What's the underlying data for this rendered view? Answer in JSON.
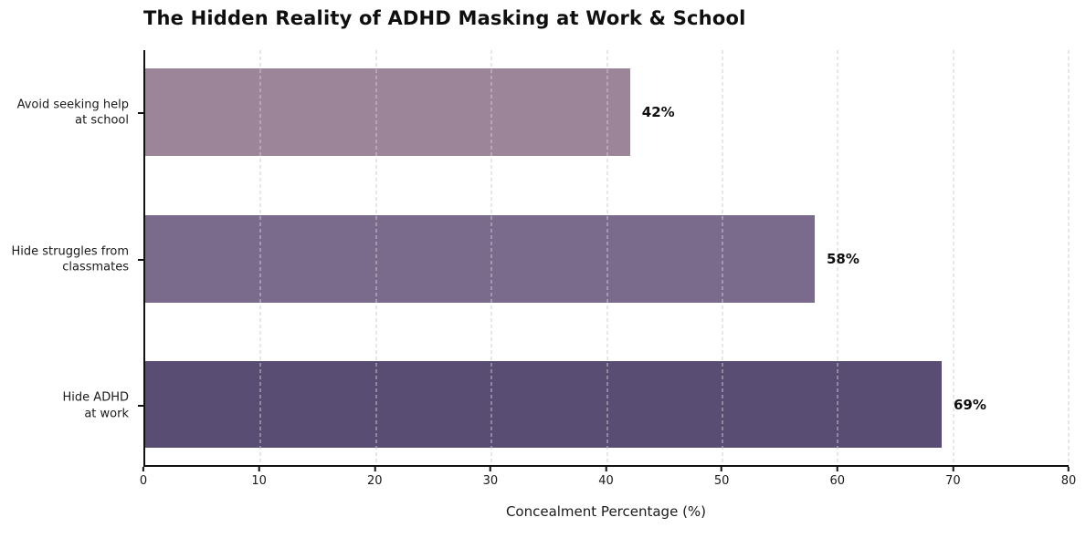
{
  "chart_data": {
    "type": "bar",
    "orientation": "horizontal",
    "title": "The Hidden Reality of ADHD Masking at Work & School",
    "xlabel": "Concealment Percentage (%)",
    "categories": [
      "Avoid seeking help\nat school",
      "Hide struggles from\nclassmates",
      "Hide ADHD\nat work"
    ],
    "values": [
      42,
      58,
      69
    ],
    "value_labels": [
      "42%",
      "58%",
      "69%"
    ],
    "bar_colors": [
      "#9c8598",
      "#7a6b8d",
      "#594d74"
    ],
    "xlim": [
      0,
      80
    ],
    "xticks": [
      0,
      10,
      20,
      30,
      40,
      50,
      60,
      70,
      80
    ],
    "grid": "vertical dashed, drawn over bars",
    "grid_color": "#cdcdcd",
    "axis_color": "#111111",
    "text_color": "#1a1a1a",
    "background_color": "#ffffff",
    "legend": "none"
  }
}
